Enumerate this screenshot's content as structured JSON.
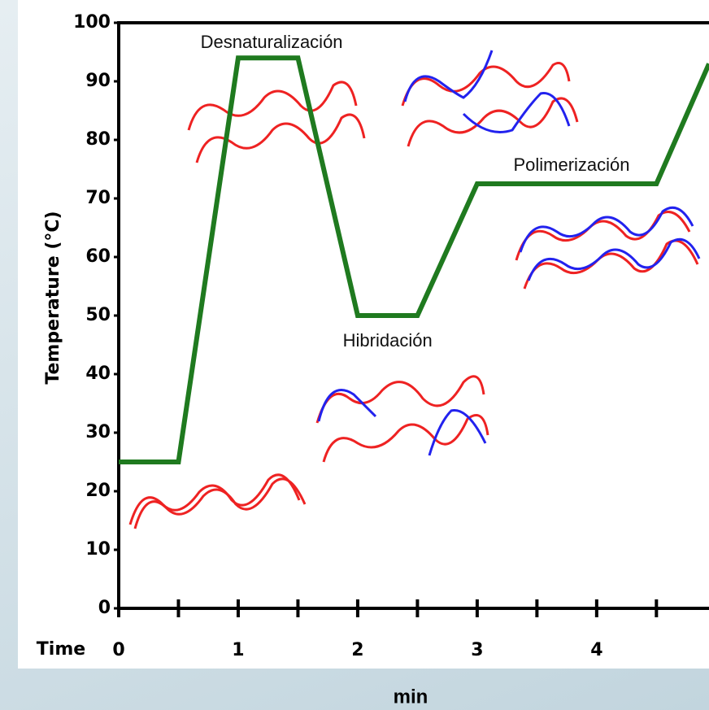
{
  "chart_data": {
    "type": "line",
    "x_label": "Time",
    "y_label": "Temperature (°C)",
    "unit_label": "min",
    "x": [
      0,
      0.5,
      1,
      1.5,
      2,
      2.5,
      3,
      4.5,
      4.94
    ],
    "series": [
      {
        "color": "#1f7a1f",
        "values": [
          25,
          25,
          94,
          94,
          50,
          50,
          72.5,
          72.5,
          93
        ]
      }
    ],
    "xlim": [
      0,
      4.94
    ],
    "xticks": [
      0,
      1,
      2,
      3,
      4
    ],
    "xminorticks": [
      0.5,
      1.5,
      2.5,
      3.5,
      4.5
    ],
    "ylim": [
      0,
      100
    ],
    "yticks": [
      0,
      10,
      20,
      30,
      40,
      50,
      60,
      70,
      80,
      90,
      100
    ],
    "grid": false,
    "annotations": [
      {
        "text": "Desnaturalización",
        "x": 1.28,
        "y": 96.5
      },
      {
        "text": "Hibridación",
        "x": 2.25,
        "y": 45.5
      },
      {
        "text": "Polimerización",
        "x": 3.79,
        "y": 75.5
      }
    ]
  }
}
